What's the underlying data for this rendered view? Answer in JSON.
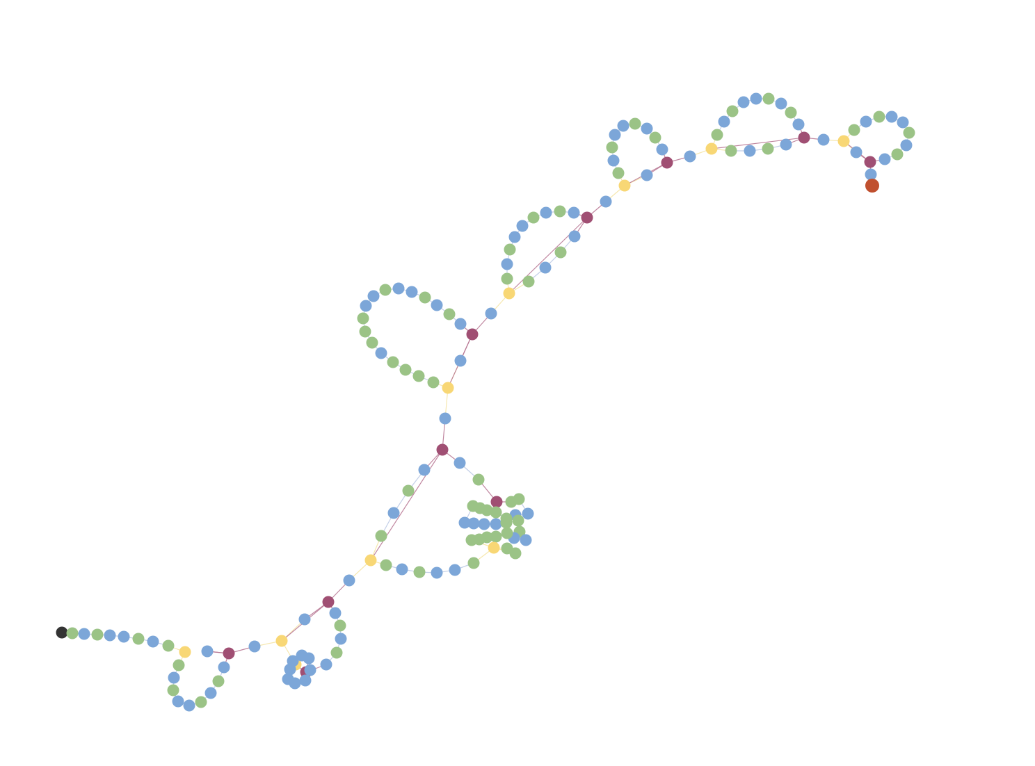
{
  "diagram": {
    "type": "chain-graph",
    "colors": {
      "start": "#333333",
      "end": "#c0502f",
      "blue": "#7ca6d8",
      "green": "#9bc386",
      "yellow": "#f8d775",
      "purple": "#a04f73",
      "edge_blue": "#b9c7e3",
      "edge_yellow": "#f4e3a0",
      "edge_purple": "#b5728f"
    },
    "node_types": [
      "start",
      "blue",
      "green",
      "yellow",
      "purple",
      "end"
    ]
  }
}
